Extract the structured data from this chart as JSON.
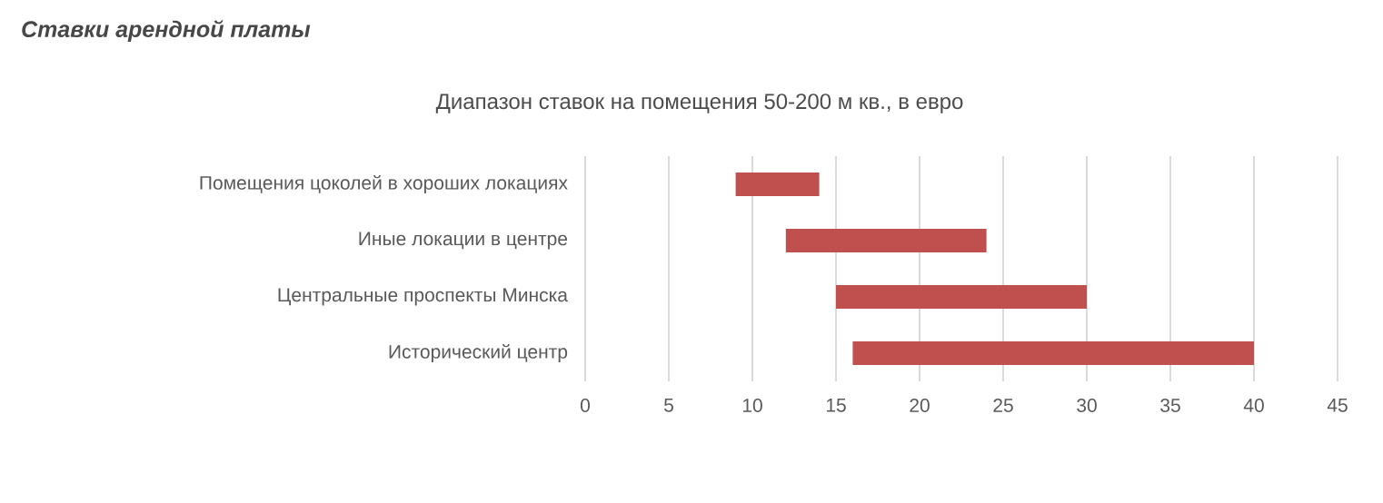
{
  "chart_data": {
    "type": "bar",
    "orientation": "horizontal",
    "title": "Ставки арендной платы",
    "subtitle": "Диапазон ставок на помещения 50-200 м кв., в евро",
    "categories": [
      "Помещения цоколей в хороших локациях",
      "Иные локации в центре",
      "Центральные проспекты Минска",
      "Исторический центр"
    ],
    "base": [
      9,
      12,
      15,
      16
    ],
    "values": [
      5,
      12,
      15,
      24
    ],
    "color": "#c0504d",
    "xlim": [
      0,
      45
    ],
    "xticks": [
      0,
      5,
      10,
      15,
      20,
      25,
      30,
      35,
      40,
      45
    ],
    "grid": "x"
  }
}
